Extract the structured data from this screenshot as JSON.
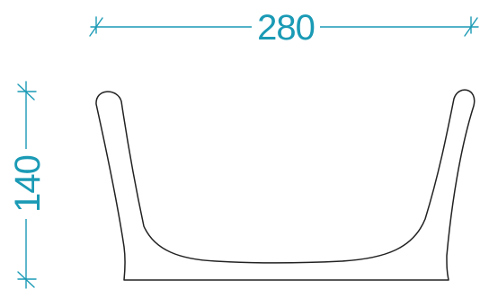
{
  "dimensions": {
    "width_label": "280",
    "height_label": "140"
  },
  "colors": {
    "dimension": "#1a9ab5",
    "outline": "#222222",
    "background": "#ffffff"
  }
}
